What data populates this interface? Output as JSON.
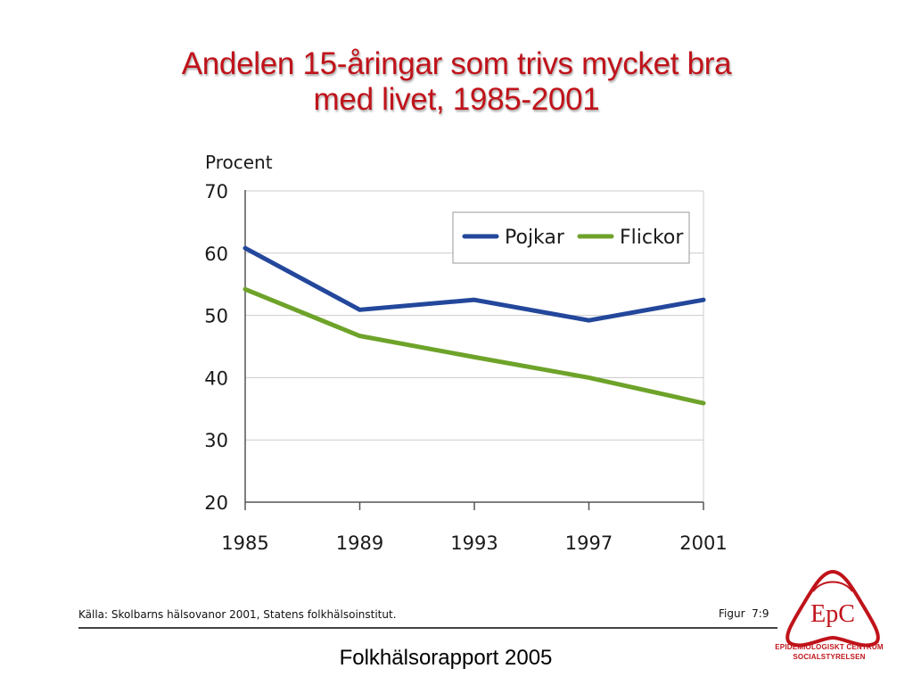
{
  "slide": {
    "title_line1": "Andelen 15-åringar som trivs mycket bra",
    "title_line2": "med livet, 1985-2001",
    "source": "Källa: Skolbarns hälsovanor 2001, Statens folkhälsoinstitut.",
    "figure": "Figur  7:9",
    "footer": "Folkhälsorapport 2005",
    "logo_text": "EpC",
    "logo_line1": "EPIDEMIOLOGISKT CENTRUM",
    "logo_line2": "SOCIALSTYRELSEN",
    "logo_icon": "epc-logo-icon"
  },
  "colors": {
    "title": "#c0131a",
    "pojkar": "#23479b",
    "flickor": "#6ea32a",
    "grid": "#cccccc",
    "logo": "#c0131a"
  },
  "chart_data": {
    "type": "line",
    "title": "Andelen 15-åringar som trivs mycket bra med livet, 1985-2001",
    "ylabel": "Procent",
    "xlabel": "",
    "x": [
      "1985",
      "1989",
      "1993",
      "1997",
      "2001"
    ],
    "ylim": [
      20,
      70
    ],
    "yticks": [
      "20",
      "30",
      "40",
      "50",
      "60",
      "70"
    ],
    "grid": true,
    "legend_position": "top-right",
    "series": [
      {
        "name": "Pojkar",
        "values": [
          60.8,
          50.9,
          52.5,
          49.2,
          52.5
        ],
        "color": "#23479b"
      },
      {
        "name": "Flickor",
        "values": [
          54.2,
          46.7,
          43.3,
          40.0,
          35.9
        ],
        "color": "#6ea32a"
      }
    ]
  }
}
